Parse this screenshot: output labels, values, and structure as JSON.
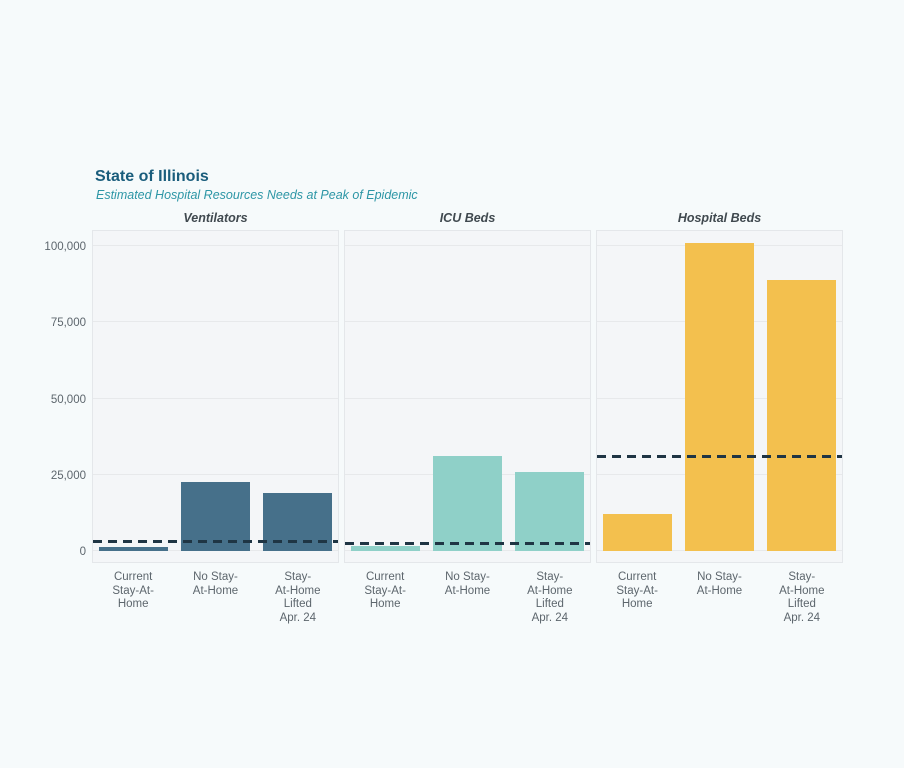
{
  "page": {
    "background_color": "#f6fafb"
  },
  "chart_data": {
    "type": "bar",
    "title": "State of Illinois",
    "subtitle": "Estimated Hospital Resources Needs at Peak of Epidemic",
    "title_color": "#1a5d7c",
    "subtitle_color": "#2d96a6",
    "layout": "three faceted bar panels sharing one y-axis, horizontal dashed capacity line per panel",
    "categories": [
      "Current\nStay-At-\nHome",
      "No Stay-\nAt-Home",
      "Stay-\nAt-Home\nLifted\nApr. 24"
    ],
    "y_ticks": [
      0,
      25000,
      50000,
      75000,
      100000
    ],
    "y_tick_labels": [
      "0",
      "25,000",
      "50,000",
      "75,000",
      "100,000"
    ],
    "ylim": [
      0,
      105000
    ],
    "grid": true,
    "legend": "none",
    "panels": [
      {
        "title": "Ventilators",
        "bar_color": "#46708a",
        "values": [
          1300,
          22500,
          19000
        ],
        "capacity_line": 3000
      },
      {
        "title": "ICU Beds",
        "bar_color": "#8fd0c8",
        "values": [
          1800,
          31000,
          26000
        ],
        "capacity_line": 2500
      },
      {
        "title": "Hospital Beds",
        "bar_color": "#f3c04e",
        "values": [
          12000,
          101000,
          89000
        ],
        "capacity_line": 31000
      }
    ],
    "capacity_line_style": {
      "color": "#1f3544",
      "dash": "dashed"
    }
  }
}
